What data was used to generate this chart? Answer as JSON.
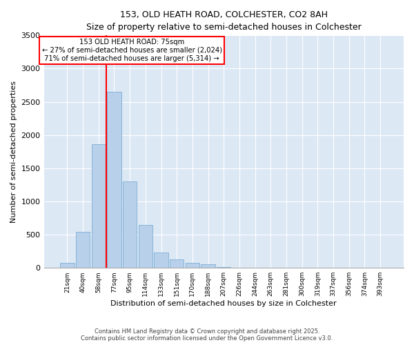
{
  "title_line1": "153, OLD HEATH ROAD, COLCHESTER, CO2 8AH",
  "title_line2": "Size of property relative to semi-detached houses in Colchester",
  "xlabel": "Distribution of semi-detached houses by size in Colchester",
  "ylabel": "Number of semi-detached properties",
  "categories": [
    "21sqm",
    "40sqm",
    "58sqm",
    "77sqm",
    "95sqm",
    "114sqm",
    "133sqm",
    "151sqm",
    "170sqm",
    "188sqm",
    "207sqm",
    "226sqm",
    "244sqm",
    "263sqm",
    "281sqm",
    "300sqm",
    "319sqm",
    "337sqm",
    "356sqm",
    "374sqm",
    "393sqm"
  ],
  "values": [
    70,
    540,
    1860,
    2650,
    1300,
    650,
    230,
    130,
    80,
    55,
    15,
    5,
    5,
    3,
    0,
    0,
    0,
    0,
    0,
    0,
    0
  ],
  "bar_color": "#b8d0ea",
  "bar_edge_color": "#7aaed4",
  "red_line_index": 3,
  "annotation_text_line1": "153 OLD HEATH ROAD: 75sqm",
  "annotation_text_line2": "← 27% of semi-detached houses are smaller (2,024)",
  "annotation_text_line3": "71% of semi-detached houses are larger (5,314) →",
  "ylim": [
    0,
    3500
  ],
  "yticks": [
    0,
    500,
    1000,
    1500,
    2000,
    2500,
    3000,
    3500
  ],
  "bg_color": "#dde8f5",
  "footer_line1": "Contains HM Land Registry data © Crown copyright and database right 2025.",
  "footer_line2": "Contains public sector information licensed under the Open Government Licence v3.0."
}
